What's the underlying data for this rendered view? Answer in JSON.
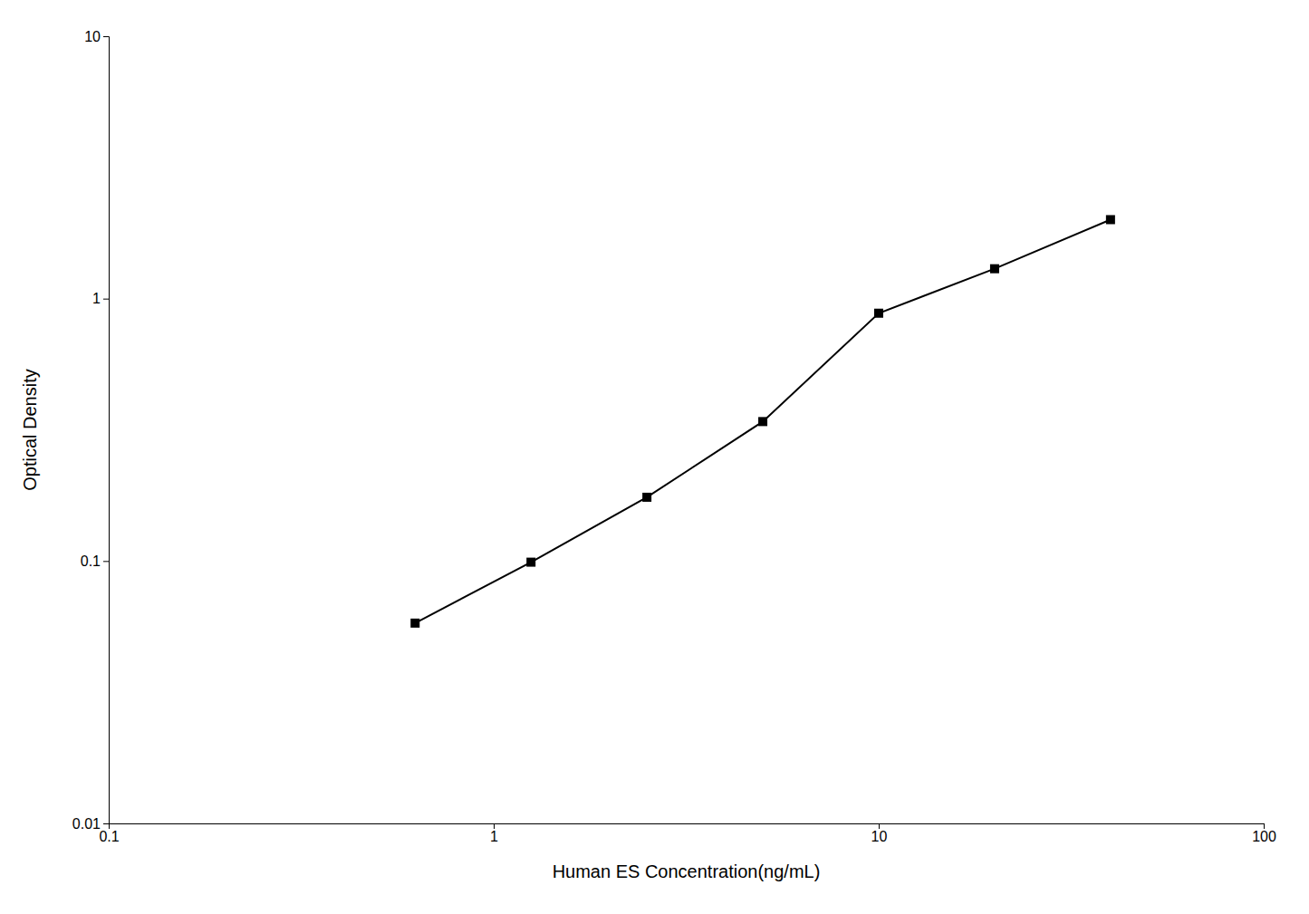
{
  "chart_data": {
    "type": "line",
    "x": [
      0.625,
      1.25,
      2.5,
      5.0,
      10.0,
      20.0,
      40.0
    ],
    "values": [
      0.058,
      0.099,
      0.175,
      0.34,
      0.88,
      1.3,
      2.0
    ],
    "xlabel": "Human ES Concentration(ng/mL)",
    "ylabel": "Optical Density",
    "xlim": [
      0.1,
      100
    ],
    "ylim": [
      0.01,
      10
    ],
    "xticks": [
      0.1,
      1,
      10,
      100
    ],
    "yticks": [
      0.01,
      0.1,
      1,
      10
    ],
    "log": true,
    "grid": false,
    "color": "#000000",
    "marker": "square"
  }
}
